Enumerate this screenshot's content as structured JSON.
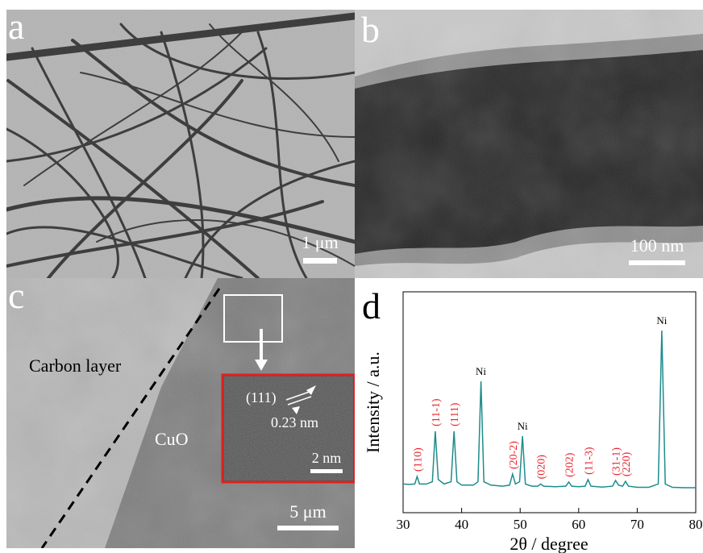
{
  "panels": {
    "a": {
      "label": "a",
      "scale_bar": "1 μm"
    },
    "b": {
      "label": "b",
      "scale_bar": "100 nm"
    },
    "c": {
      "label": "c",
      "scale_bar": "5 μm",
      "annotations": [
        "Carbon layer",
        "CuO"
      ],
      "inset": {
        "scale_bar": "2 nm",
        "plane": "(111)",
        "spacing": "0.23 nm"
      }
    }
  },
  "chart_data": {
    "type": "line",
    "label": "d",
    "y_label": "Intensity / a.u.",
    "x_label": "2θ / degree",
    "x": [
      30,
      31,
      32,
      32.4,
      32.8,
      34,
      35,
      35.5,
      36,
      37,
      38.2,
      38.7,
      39.2,
      40,
      42,
      42.8,
      43.3,
      43.8,
      45,
      47,
      48.2,
      48.7,
      49.2,
      49.9,
      50.4,
      50.9,
      52,
      53,
      53.5,
      54,
      56,
      57.8,
      58.3,
      58.8,
      60,
      61.1,
      61.6,
      62.1,
      64,
      65.8,
      66.3,
      66.8,
      67.5,
      68,
      68.5,
      70,
      72,
      73.6,
      74.2,
      74.8,
      76,
      78,
      80
    ],
    "series": [
      {
        "color": "#1e8c8c",
        "values": [
          13,
          12.8,
          13,
          16.4,
          13,
          13,
          14,
          36.9,
          15,
          13,
          14,
          36.9,
          14,
          12.5,
          12.5,
          14,
          59.5,
          14,
          12.5,
          12,
          12.5,
          17.5,
          13,
          14,
          34.7,
          13,
          12,
          12,
          13,
          12,
          11.8,
          12,
          13.9,
          12,
          11.8,
          12,
          15,
          12,
          11.6,
          12,
          14.6,
          12.5,
          12,
          14.2,
          12,
          11.5,
          11.5,
          13,
          82.5,
          13,
          11.5,
          11.3,
          11.3
        ]
      }
    ],
    "xlim": [
      30,
      80
    ],
    "ylim": [
      0,
      100
    ],
    "xticks": [
      30,
      40,
      50,
      60,
      70,
      80
    ],
    "annotations": [
      {
        "text": "(110)",
        "x": 32.4,
        "color": "#e8202a"
      },
      {
        "text": "(11-1)",
        "x": 35.5,
        "color": "#e8202a"
      },
      {
        "text": "(111)",
        "x": 38.7,
        "color": "#e8202a"
      },
      {
        "text": "Ni",
        "x": 43.3,
        "color": "#000000"
      },
      {
        "text": "(20-2)",
        "x": 48.7,
        "color": "#e8202a"
      },
      {
        "text": "Ni",
        "x": 50.4,
        "color": "#000000"
      },
      {
        "text": "(020)",
        "x": 53.5,
        "color": "#e8202a"
      },
      {
        "text": "(202)",
        "x": 58.3,
        "color": "#e8202a"
      },
      {
        "text": "(11-3)",
        "x": 61.6,
        "color": "#e8202a"
      },
      {
        "text": "(31-1)",
        "x": 66.3,
        "color": "#e8202a"
      },
      {
        "text": "(220)",
        "x": 68,
        "color": "#e8202a"
      },
      {
        "text": "Ni",
        "x": 74.2,
        "color": "#000000"
      }
    ]
  }
}
